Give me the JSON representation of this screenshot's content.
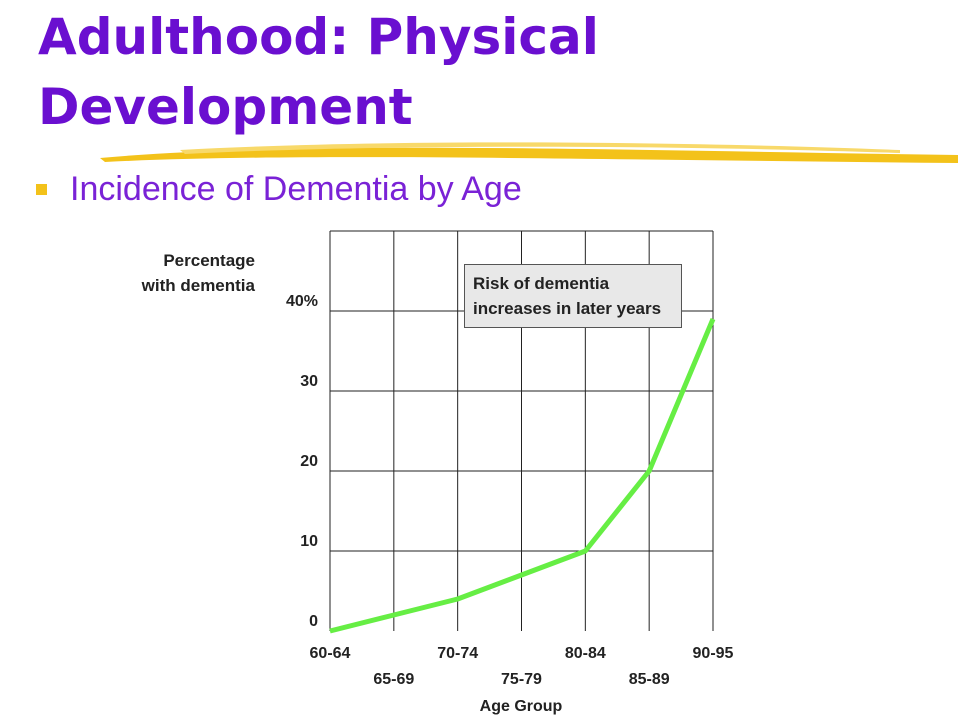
{
  "slide": {
    "title": "Adulthood: Physical Development",
    "bullet": "Incidence of Dementia by Age"
  },
  "chart_data": {
    "type": "line",
    "y_label": "Percentage\nwith dementia",
    "x_label": "Age Group",
    "annotation": "Risk of dementia increases in later years",
    "categories": [
      "60-64",
      "65-69",
      "70-74",
      "75-79",
      "80-84",
      "85-89",
      "90-95"
    ],
    "values": [
      0,
      2,
      4,
      7,
      10,
      20,
      39
    ],
    "color": "#66ee44",
    "ylim": [
      0,
      50
    ],
    "yticks": [
      0,
      10,
      20,
      30,
      {
        "value": 40,
        "label": "40%"
      }
    ],
    "grid": true
  }
}
